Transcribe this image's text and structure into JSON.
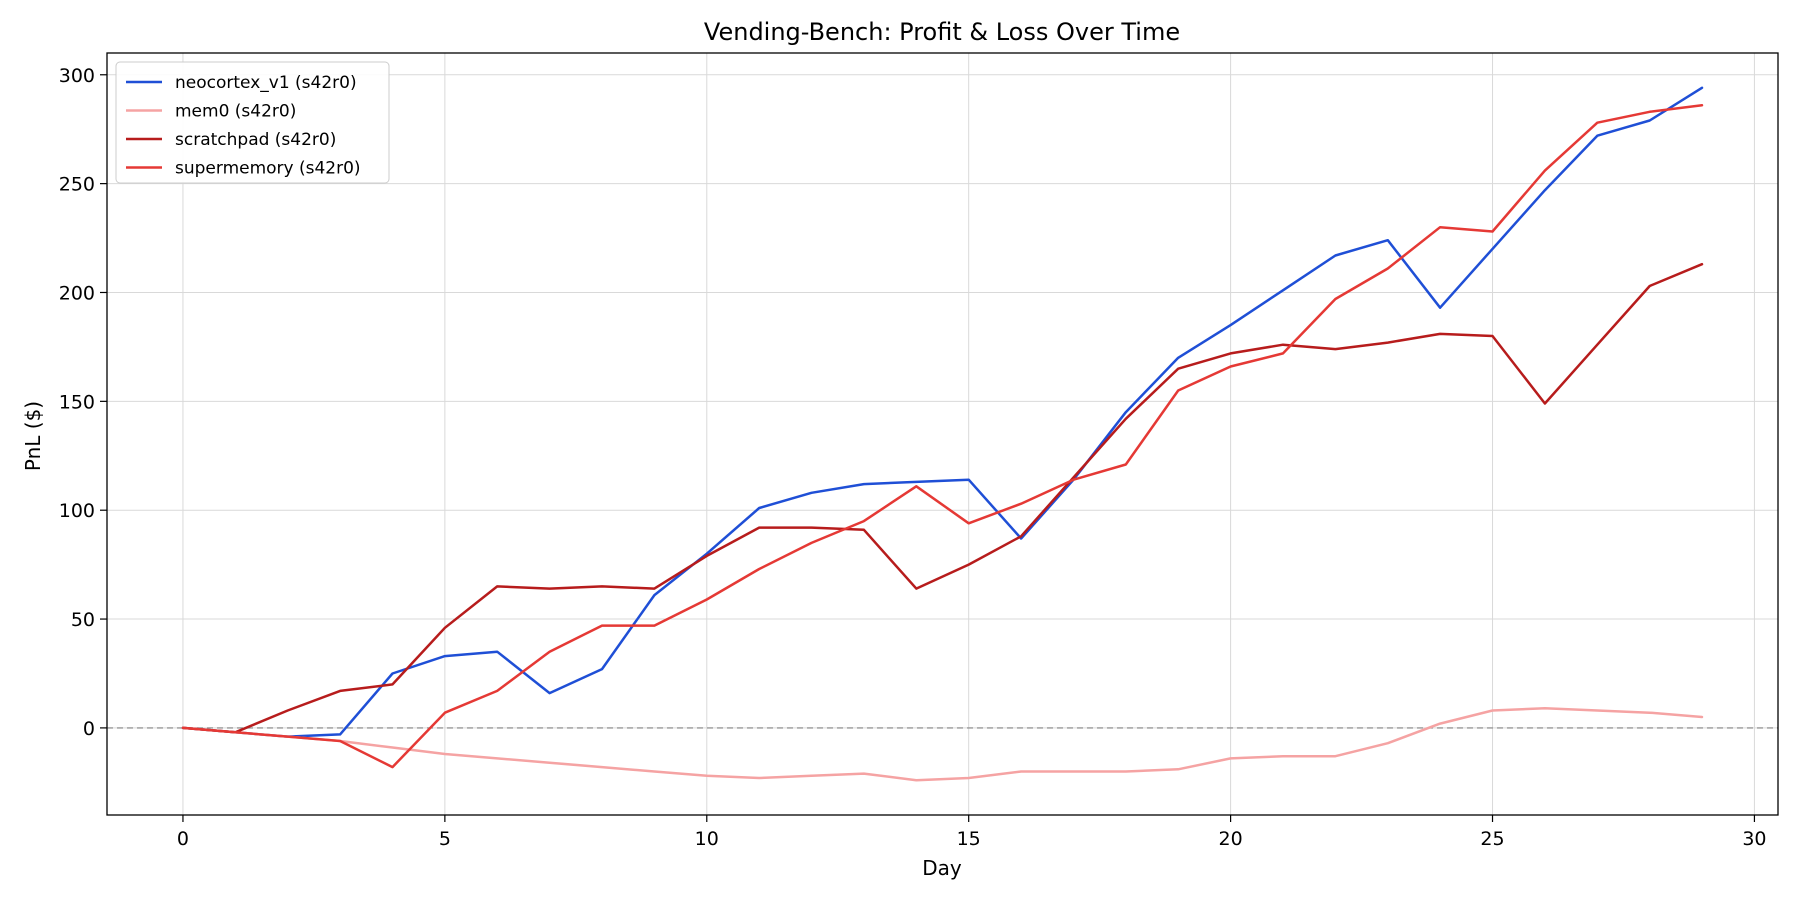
{
  "chart_data": {
    "type": "line",
    "title": "Vending-Bench: Profit & Loss Over Time",
    "xlabel": "Day",
    "ylabel": "PnL ($)",
    "xlim": [
      -1.45,
      30.45
    ],
    "ylim": [
      -40,
      310
    ],
    "xticks": [
      0,
      5,
      10,
      15,
      20,
      25,
      30
    ],
    "yticks": [
      0,
      50,
      100,
      150,
      200,
      250,
      300
    ],
    "grid": true,
    "zero_line": true,
    "legend_position": "top-left",
    "x": [
      0,
      1,
      2,
      3,
      4,
      5,
      6,
      7,
      8,
      9,
      10,
      11,
      12,
      13,
      14,
      15,
      16,
      17,
      18,
      19,
      20,
      21,
      22,
      23,
      24,
      25,
      26,
      27,
      28,
      29
    ],
    "series": [
      {
        "name": "neocortex_v1 (s42r0)",
        "color": "#1f4fd6",
        "values": [
          0,
          -2,
          -4,
          -3,
          25,
          33,
          35,
          16,
          27,
          61,
          80,
          101,
          108,
          112,
          113,
          114,
          87,
          114,
          145,
          170,
          185,
          201,
          217,
          224,
          193,
          220,
          247,
          272,
          279,
          294
        ]
      },
      {
        "name": "mem0 (s42r0)",
        "color": "#f5a3a3",
        "values": [
          0,
          -2,
          -4,
          -6,
          -9,
          -12,
          -14,
          -16,
          -18,
          -20,
          -22,
          -23,
          -22,
          -21,
          -24,
          -23,
          -20,
          -20,
          -20,
          -19,
          -14,
          -13,
          -13,
          -7,
          2,
          8,
          9,
          8,
          7,
          5
        ]
      },
      {
        "name": "scratchpad (s42r0)",
        "color": "#b71c1c",
        "values": [
          0,
          -2,
          8,
          17,
          20,
          46,
          65,
          64,
          65,
          64,
          79,
          92,
          92,
          91,
          64,
          75,
          88,
          115,
          142,
          165,
          172,
          176,
          174,
          177,
          181,
          180,
          149,
          176,
          203,
          213
        ]
      },
      {
        "name": "supermemory (s42r0)",
        "color": "#e53935",
        "values": [
          0,
          -2,
          -4,
          -6,
          -18,
          7,
          17,
          35,
          47,
          47,
          59,
          73,
          85,
          95,
          111,
          94,
          103,
          114,
          121,
          155,
          166,
          172,
          197,
          211,
          230,
          228,
          256,
          278,
          283,
          286
        ]
      }
    ]
  }
}
